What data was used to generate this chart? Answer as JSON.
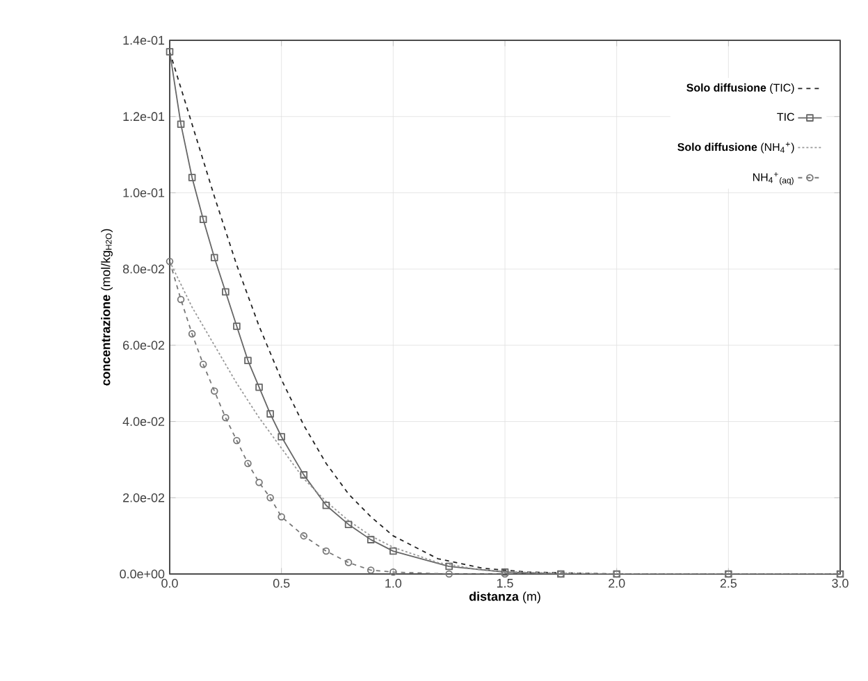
{
  "chart_data": {
    "type": "line",
    "xlabel": "**distanza** (m)",
    "ylabel": "**concentrazione** (mol/kg$_{H2O}$)",
    "xlim": [
      0,
      3
    ],
    "ylim": [
      0,
      0.14
    ],
    "xticks": [
      {
        "value": 0,
        "label": "0.0"
      },
      {
        "value": 0.5,
        "label": "0.5"
      },
      {
        "value": 1,
        "label": "1.0"
      },
      {
        "value": 1.5,
        "label": "1.5"
      },
      {
        "value": 2,
        "label": "2.0"
      },
      {
        "value": 2.5,
        "label": "2.5"
      },
      {
        "value": 3,
        "label": "3.0"
      }
    ],
    "yticks": [
      {
        "value": 0,
        "label": "0.0e+00"
      },
      {
        "value": 0.02,
        "label": "2.0e-02"
      },
      {
        "value": 0.04,
        "label": "4.0e-02"
      },
      {
        "value": 0.06,
        "label": "6.0e-02"
      },
      {
        "value": 0.08,
        "label": "8.0e-02"
      },
      {
        "value": 0.1,
        "label": "1.0e-01"
      },
      {
        "value": 0.12,
        "label": "1.2e-01"
      },
      {
        "value": 0.14,
        "label": "1.4e-01"
      }
    ],
    "grid": true,
    "legend": "top right",
    "series": [
      {
        "name": "**Solo diffusione** (TIC)",
        "color": "#222222",
        "line_style": "dashed",
        "marker": "none",
        "x": [
          0,
          0.1,
          0.2,
          0.3,
          0.4,
          0.5,
          0.6,
          0.7,
          0.8,
          0.9,
          1.0,
          1.2,
          1.4,
          1.6,
          2.0,
          3.0
        ],
        "values": [
          0.137,
          0.118,
          0.099,
          0.081,
          0.065,
          0.051,
          0.039,
          0.029,
          0.021,
          0.015,
          0.01,
          0.004,
          0.0015,
          0.0005,
          0,
          0
        ]
      },
      {
        "name": "TIC",
        "color": "#666666",
        "line_style": "solid",
        "marker": "square",
        "x": [
          0,
          0.05,
          0.1,
          0.15,
          0.2,
          0.25,
          0.3,
          0.35,
          0.4,
          0.45,
          0.5,
          0.6,
          0.7,
          0.8,
          0.9,
          1.0,
          1.25,
          1.5,
          1.75,
          2.0,
          2.5,
          3.0
        ],
        "values": [
          0.137,
          0.118,
          0.104,
          0.093,
          0.083,
          0.074,
          0.065,
          0.056,
          0.049,
          0.042,
          0.036,
          0.026,
          0.018,
          0.013,
          0.009,
          0.006,
          0.002,
          0.0005,
          0,
          0,
          0,
          0
        ]
      },
      {
        "name": "**Solo diffusione** (NH$_{4}$$^{+}$)",
        "color": "#999999",
        "line_style": "dotted",
        "marker": "none",
        "x": [
          0,
          0.1,
          0.2,
          0.3,
          0.4,
          0.5,
          0.6,
          0.7,
          0.8,
          0.9,
          1.0,
          1.2,
          1.4,
          1.6,
          2.0,
          3.0
        ],
        "values": [
          0.082,
          0.07,
          0.06,
          0.05,
          0.041,
          0.033,
          0.025,
          0.019,
          0.014,
          0.01,
          0.007,
          0.003,
          0.001,
          0.0004,
          0,
          0
        ]
      },
      {
        "name": "NH$_{4}$$^{+}$$_{(aq)}$",
        "color": "#777777",
        "line_style": "dashed",
        "marker": "circle",
        "x": [
          0,
          0.05,
          0.1,
          0.15,
          0.2,
          0.25,
          0.3,
          0.35,
          0.4,
          0.45,
          0.5,
          0.6,
          0.7,
          0.8,
          0.9,
          1.0,
          1.25,
          1.5,
          1.75,
          2.0,
          2.5,
          3.0
        ],
        "values": [
          0.082,
          0.072,
          0.063,
          0.055,
          0.048,
          0.041,
          0.035,
          0.029,
          0.024,
          0.02,
          0.015,
          0.01,
          0.006,
          0.003,
          0.001,
          0.0005,
          0,
          0,
          0,
          0,
          0,
          0
        ]
      }
    ]
  }
}
